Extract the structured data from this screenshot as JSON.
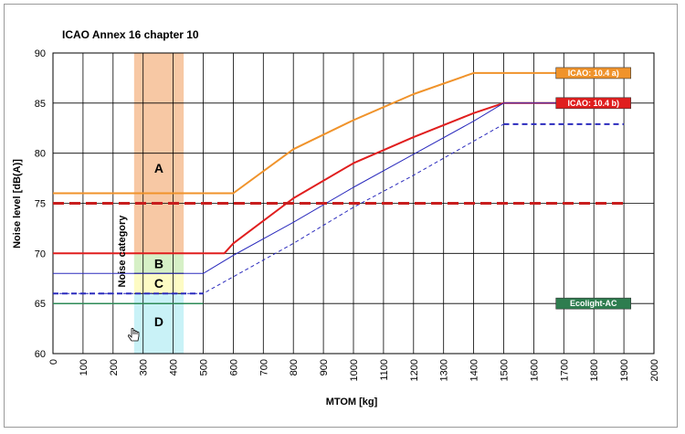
{
  "chart_data": {
    "type": "line",
    "title": "ICAO Annex 16 chapter 10",
    "xlabel": "MTOM [kg]",
    "ylabel": "Noise level  [dB(A)]",
    "xlim": [
      0,
      2000
    ],
    "ylim": [
      60,
      90
    ],
    "xticks": [
      0,
      100,
      200,
      300,
      400,
      500,
      600,
      700,
      800,
      900,
      1000,
      1100,
      1200,
      1300,
      1400,
      1500,
      1600,
      1700,
      1800,
      1900,
      2000
    ],
    "yticks": [
      60,
      65,
      70,
      75,
      80,
      85,
      90
    ],
    "grid": true,
    "band_label": "Noise category",
    "categories": [
      {
        "label": "A",
        "x": [
          270,
          435
        ],
        "y": [
          70,
          90
        ],
        "color": "#f7c8a4"
      },
      {
        "label": "B",
        "x": [
          270,
          435
        ],
        "y": [
          68,
          70
        ],
        "color": "#d6f0c6"
      },
      {
        "label": "C",
        "x": [
          270,
          435
        ],
        "y": [
          66,
          68
        ],
        "color": "#fdfbc4"
      },
      {
        "label": "D",
        "x": [
          270,
          435
        ],
        "y": [
          60,
          66
        ],
        "color": "#c9f2f7"
      }
    ],
    "series": [
      {
        "name": "ICAO: 10.4 a)",
        "color": "#f0932b",
        "width": 2,
        "dash": "",
        "x": [
          0,
          600,
          800,
          1000,
          1200,
          1400,
          1900
        ],
        "y": [
          76,
          76,
          80.4,
          83.3,
          85.9,
          88,
          88
        ]
      },
      {
        "name": "ICAO: 10.4 b)",
        "color": "#e01e1e",
        "width": 2,
        "dash": "",
        "x": [
          0,
          570,
          600,
          800,
          1000,
          1200,
          1400,
          1500,
          1900
        ],
        "y": [
          70,
          70,
          71,
          75.5,
          79,
          81.6,
          84,
          85,
          85
        ]
      },
      {
        "name": "",
        "color": "#2b2bbd",
        "width": 1,
        "dash": "",
        "x": [
          0,
          500,
          600,
          800,
          1000,
          1200,
          1400,
          1500,
          1900
        ],
        "y": [
          68,
          68,
          69.8,
          73.1,
          76.6,
          79.9,
          83.2,
          85,
          85
        ]
      },
      {
        "name": "",
        "color": "#2b2bbd",
        "width": 1,
        "dash": "4,3",
        "x": [
          0,
          500,
          800,
          1000,
          1200,
          1400,
          1500
        ],
        "y": [
          66,
          66,
          71,
          74.6,
          77.8,
          81.2,
          82.9
        ]
      },
      {
        "name": "",
        "color": "#2b2bbd",
        "width": 2,
        "dash": "6,4",
        "x": [
          0,
          500
        ],
        "y": [
          66,
          66
        ]
      },
      {
        "name": "",
        "color": "#2b2bbd",
        "width": 2,
        "dash": "6,4",
        "x": [
          1500,
          1900
        ],
        "y": [
          82.9,
          82.9
        ]
      },
      {
        "name": "",
        "color": "#c81e1e",
        "width": 3,
        "dash": "12,6",
        "x": [
          0,
          1900
        ],
        "y": [
          75,
          75
        ]
      },
      {
        "name": "Ecolight-AC",
        "color": "#2e8b57",
        "width": 1.5,
        "dash": "",
        "x": [
          0,
          500
        ],
        "y": [
          65,
          65
        ]
      }
    ],
    "badges": [
      {
        "text": "ICAO: 10.4 a)",
        "color": "#f0932b",
        "x": 1680,
        "y": 88
      },
      {
        "text": "ICAO: 10.4 b)",
        "color": "#e01e1e",
        "x": 1680,
        "y": 85
      },
      {
        "text": "Ecolight-AC",
        "color": "#2e7d4f",
        "x": 1680,
        "y": 65
      }
    ]
  }
}
